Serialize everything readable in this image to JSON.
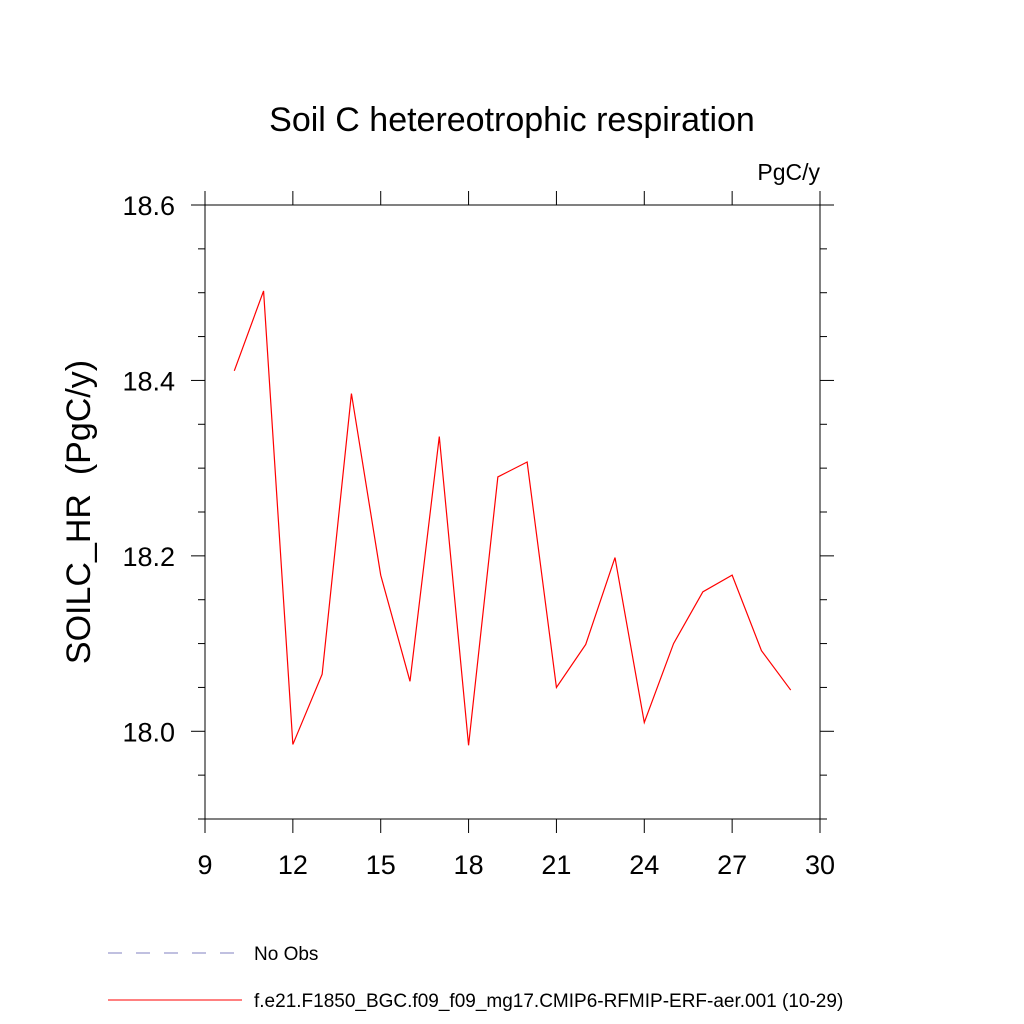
{
  "chart_data": {
    "type": "line",
    "title": "Soil C hetereotrophic respiration",
    "units_label": "PgC/y",
    "ylabel": "SOILC_HR  (PgC/y)",
    "xlabel": "",
    "xlim": [
      9,
      30
    ],
    "ylim": [
      17.9,
      18.6
    ],
    "x_ticks": [
      9,
      12,
      15,
      18,
      21,
      24,
      27,
      30
    ],
    "x_tick_labels": [
      "9",
      "12",
      "15",
      "18",
      "21",
      "24",
      "27",
      "30"
    ],
    "y_ticks": [
      18.0,
      18.2,
      18.4,
      18.6
    ],
    "y_tick_labels": [
      "18.0",
      "18.2",
      "18.4",
      "18.6"
    ],
    "grid": false,
    "legend_position": "bottom",
    "series": [
      {
        "name": "f.e21.F1850_BGC.f09_f09_mg17.CMIP6-RFMIP-ERF-aer.001 (10-29)",
        "color": "#ff0000",
        "style": "solid",
        "x": [
          10,
          11,
          12,
          13,
          14,
          15,
          16,
          17,
          18,
          19,
          20,
          21,
          22,
          23,
          24,
          25,
          26,
          27,
          28,
          29
        ],
        "values": [
          18.411,
          18.502,
          17.985,
          18.065,
          18.385,
          18.178,
          18.057,
          18.336,
          17.984,
          18.29,
          18.307,
          18.05,
          18.099,
          18.198,
          18.01,
          18.1,
          18.159,
          18.178,
          18.092,
          18.047
        ]
      }
    ],
    "legend": [
      {
        "label": "No Obs",
        "color": "#8080c0",
        "style": "dashed"
      },
      {
        "label": "f.e21.F1850_BGC.f09_f09_mg17.CMIP6-RFMIP-ERF-aer.001 (10-29)",
        "color": "#ff0000",
        "style": "solid"
      }
    ]
  }
}
